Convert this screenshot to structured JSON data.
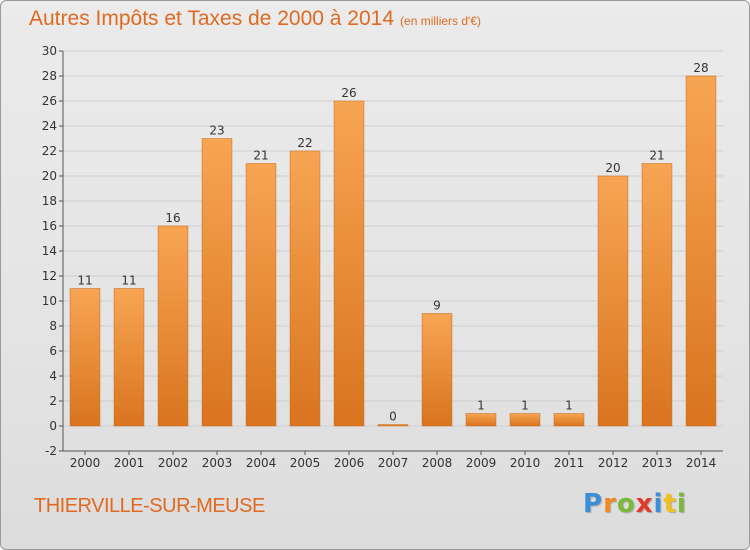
{
  "chart_data": {
    "type": "bar",
    "title": "Autres Impôts et Taxes de 2000 à 2014",
    "subtitle": "(en milliers d'€)",
    "categories": [
      "2000",
      "2001",
      "2002",
      "2003",
      "2004",
      "2005",
      "2006",
      "2007",
      "2008",
      "2009",
      "2010",
      "2011",
      "2012",
      "2013",
      "2014"
    ],
    "values": [
      11,
      11,
      16,
      23,
      21,
      22,
      26,
      0,
      9,
      1,
      1,
      1,
      20,
      21,
      28
    ],
    "data_labels": [
      "11",
      "11",
      "16",
      "23",
      "21",
      "22",
      "26",
      "0",
      "9",
      "1",
      "1",
      "1",
      "20",
      "21",
      "28"
    ],
    "ylim": [
      -2,
      30
    ],
    "yticks": [
      -2,
      0,
      2,
      4,
      6,
      8,
      10,
      12,
      14,
      16,
      18,
      20,
      22,
      24,
      26,
      28,
      30
    ],
    "grid": true,
    "bar_color": "#f0913a",
    "xlabel": "",
    "ylabel": ""
  },
  "footer": {
    "city": "THIERVILLE-SUR-MEUSE",
    "logo_letters": [
      {
        "ch": "P",
        "color": "#3a8fd6"
      },
      {
        "ch": "r",
        "color": "#f08a1e"
      },
      {
        "ch": "o",
        "color": "#7ab93a"
      },
      {
        "ch": "x",
        "color": "#e23a2a"
      },
      {
        "ch": "i",
        "color": "#3a8fd6"
      },
      {
        "ch": "t",
        "color": "#f2c21a"
      },
      {
        "ch": "i",
        "color": "#7ab93a"
      }
    ]
  },
  "colors": {
    "accent": "#e06a20",
    "grid": "#cfcfcf",
    "axis": "#555555"
  }
}
